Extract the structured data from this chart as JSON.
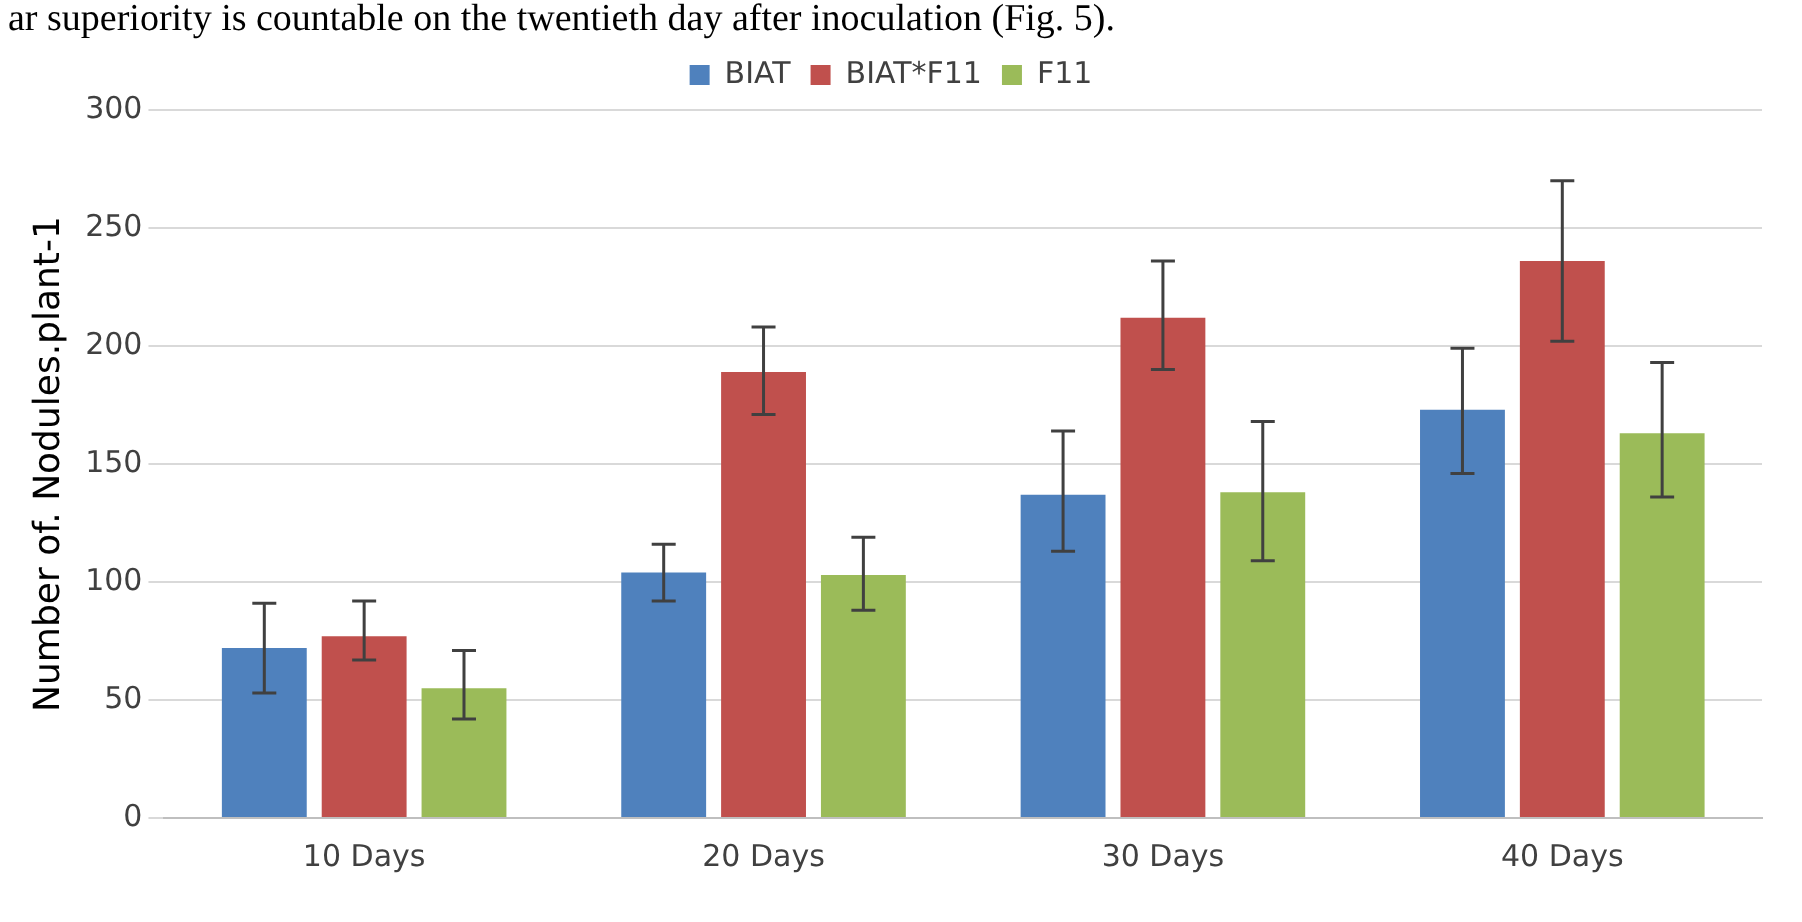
{
  "chart_data": {
    "type": "bar",
    "ylabel": "Number of. Nodules.plant-1",
    "annotations": [
      "ar superiority is countable on the twentieth day after inoculation (Fig. 5)."
    ],
    "categories": [
      "10 Days",
      "20 Days",
      "30 Days",
      "40 Days"
    ],
    "series": [
      {
        "name": "BIAT",
        "color": "#4f81bd",
        "values": [
          72,
          104,
          137,
          173
        ],
        "errors": [
          [
            53,
            91
          ],
          [
            92,
            116
          ],
          [
            113,
            164
          ],
          [
            146,
            199
          ]
        ]
      },
      {
        "name": "BIAT*F11",
        "color": "#c0504d",
        "values": [
          77,
          189,
          212,
          236
        ],
        "errors": [
          [
            67,
            92
          ],
          [
            171,
            208
          ],
          [
            190,
            236
          ],
          [
            202,
            270
          ]
        ]
      },
      {
        "name": "F11",
        "color": "#9bbb59",
        "values": [
          55,
          103,
          138,
          163
        ],
        "errors": [
          [
            42,
            71
          ],
          [
            88,
            119
          ],
          [
            109,
            168
          ],
          [
            136,
            193
          ]
        ]
      }
    ],
    "ylim": [
      0,
      300
    ],
    "yticks": [
      0,
      50,
      100,
      150,
      200,
      250,
      300
    ],
    "grid": "y",
    "legend": "top"
  }
}
